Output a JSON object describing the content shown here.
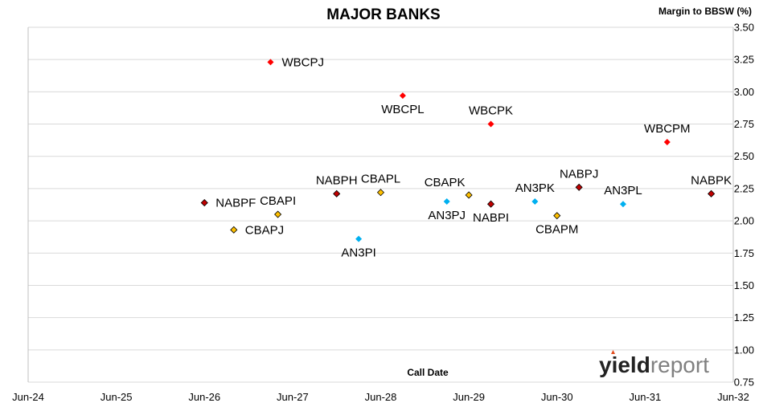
{
  "chart_data": {
    "type": "scatter",
    "title": "MAJOR BANKS",
    "ylabel": "Margin to BBSW (%)",
    "xlabel": "Call Date",
    "ylim": [
      0.75,
      3.5
    ],
    "y_ticks": [
      "0.75",
      "1.00",
      "1.25",
      "1.50",
      "1.75",
      "2.00",
      "2.25",
      "2.50",
      "2.75",
      "3.00",
      "3.25",
      "3.50"
    ],
    "x_ticks": [
      "Jun-24",
      "Jun-25",
      "Jun-26",
      "Jun-27",
      "Jun-28",
      "Jun-29",
      "Jun-30",
      "Jun-31",
      "Jun-32"
    ],
    "x_axis_type": "date",
    "xlim": [
      "2024-06",
      "2032-06"
    ],
    "grid": "horizontal",
    "legend": "none",
    "points": [
      {
        "label": "WBCPJ",
        "x": "2027-03",
        "y": 3.23,
        "color": "#ff0000",
        "label_pos": "right"
      },
      {
        "label": "WBCPL",
        "x": "2028-09",
        "y": 2.97,
        "color": "#ff0000",
        "label_pos": "below"
      },
      {
        "label": "WBCPK",
        "x": "2029-09",
        "y": 2.75,
        "color": "#ff0000",
        "label_pos": "above"
      },
      {
        "label": "WBCPM",
        "x": "2031-09",
        "y": 2.61,
        "color": "#ff0000",
        "label_pos": "above"
      },
      {
        "label": "NABPF",
        "x": "2026-06",
        "y": 2.14,
        "color": "#c00000",
        "label_pos": "right"
      },
      {
        "label": "CBAPJ",
        "x": "2026-10",
        "y": 1.93,
        "color": "#ffc000",
        "label_pos": "right"
      },
      {
        "label": "CBAPI",
        "x": "2027-04",
        "y": 2.05,
        "color": "#ffc000",
        "label_pos": "above"
      },
      {
        "label": "NABPH",
        "x": "2027-12",
        "y": 2.21,
        "color": "#c00000",
        "label_pos": "above"
      },
      {
        "label": "CBAPL",
        "x": "2028-06",
        "y": 2.22,
        "color": "#ffc000",
        "label_pos": "above"
      },
      {
        "label": "AN3PI",
        "x": "2028-03",
        "y": 1.86,
        "color": "#00b0f0",
        "label_pos": "below"
      },
      {
        "label": "CBAPK",
        "x": "2029-06",
        "y": 2.2,
        "color": "#ffc000",
        "label_pos": "above-left"
      },
      {
        "label": "AN3PJ",
        "x": "2029-03",
        "y": 2.15,
        "color": "#00b0f0",
        "label_pos": "below"
      },
      {
        "label": "NABPI",
        "x": "2029-09",
        "y": 2.13,
        "color": "#c00000",
        "label_pos": "below"
      },
      {
        "label": "AN3PK",
        "x": "2030-03",
        "y": 2.15,
        "color": "#00b0f0",
        "label_pos": "above"
      },
      {
        "label": "CBAPM",
        "x": "2030-06",
        "y": 2.04,
        "color": "#ffc000",
        "label_pos": "below"
      },
      {
        "label": "NABPJ",
        "x": "2030-09",
        "y": 2.26,
        "color": "#c00000",
        "label_pos": "above"
      },
      {
        "label": "AN3PL",
        "x": "2031-03",
        "y": 2.13,
        "color": "#00b0f0",
        "label_pos": "above"
      },
      {
        "label": "NABPK",
        "x": "2032-03",
        "y": 2.21,
        "color": "#c00000",
        "label_pos": "above"
      }
    ]
  },
  "logo": {
    "text_a": "yield",
    "text_b": "report"
  }
}
